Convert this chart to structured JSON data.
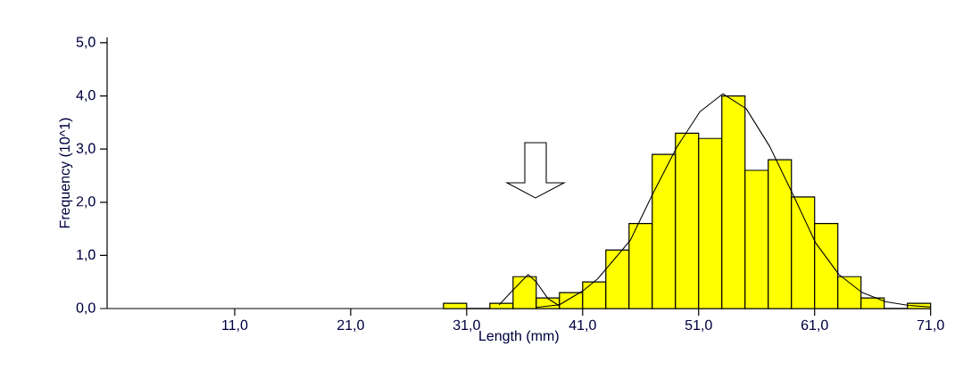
{
  "chart_data": {
    "type": "histogram",
    "xlabel": "Length (mm)",
    "ylabel": "Frequency (10^1)",
    "bins": [
      29,
      31,
      33,
      35,
      37,
      39,
      41,
      43,
      45,
      47,
      49,
      51,
      53,
      55,
      57,
      59,
      61,
      63,
      65,
      67,
      69,
      71
    ],
    "values": [
      0.1,
      0,
      0.1,
      0.6,
      0.2,
      0.3,
      0.5,
      1.1,
      1.6,
      2.9,
      3.3,
      3.2,
      4.0,
      2.6,
      2.8,
      2.1,
      1.6,
      0.6,
      0.2,
      0,
      0.1
    ],
    "color": "#ffff00",
    "series": [
      {
        "type": "line",
        "color": "#000000",
        "line_style": "solid",
        "x": [
          33.8,
          35,
          36.3,
          37,
          38,
          39
        ],
        "values": [
          0.07,
          0.35,
          0.64,
          0.5,
          0.19,
          0.05
        ]
      },
      {
        "type": "line",
        "color": "#000000",
        "line_style": "solid",
        "x": [
          37,
          39,
          41,
          42.3,
          45.1,
          47.05,
          49.1,
          51.1,
          53.1,
          55.1,
          57.1,
          59.1,
          61.1,
          63.1,
          65.1,
          67.1,
          69.1,
          71
        ],
        "values": [
          0.02,
          0.07,
          0.33,
          0.56,
          1.28,
          2.16,
          3.03,
          3.7,
          4.04,
          3.76,
          3.06,
          2.16,
          1.23,
          0.64,
          0.3,
          0.13,
          0.06,
          0.03
        ]
      }
    ],
    "xlim": [
      0,
      71
    ],
    "ylim": [
      0,
      5.1
    ],
    "xticks": [
      {
        "value": 11,
        "label": "11,0"
      },
      {
        "value": 21,
        "label": "21,0"
      },
      {
        "value": 31,
        "label": "31,0"
      },
      {
        "value": 41,
        "label": "41,0"
      },
      {
        "value": 51,
        "label": "51,0"
      },
      {
        "value": 61,
        "label": "61,0"
      },
      {
        "value": 71,
        "label": "71,0"
      }
    ],
    "yticks": [
      {
        "value": 0,
        "label": "0,0"
      },
      {
        "value": 1,
        "label": "1,0"
      },
      {
        "value": 2,
        "label": "2,0"
      },
      {
        "value": 3,
        "label": "3,0"
      },
      {
        "value": 4,
        "label": "4,0"
      },
      {
        "value": 5,
        "label": "5,0"
      }
    ]
  }
}
